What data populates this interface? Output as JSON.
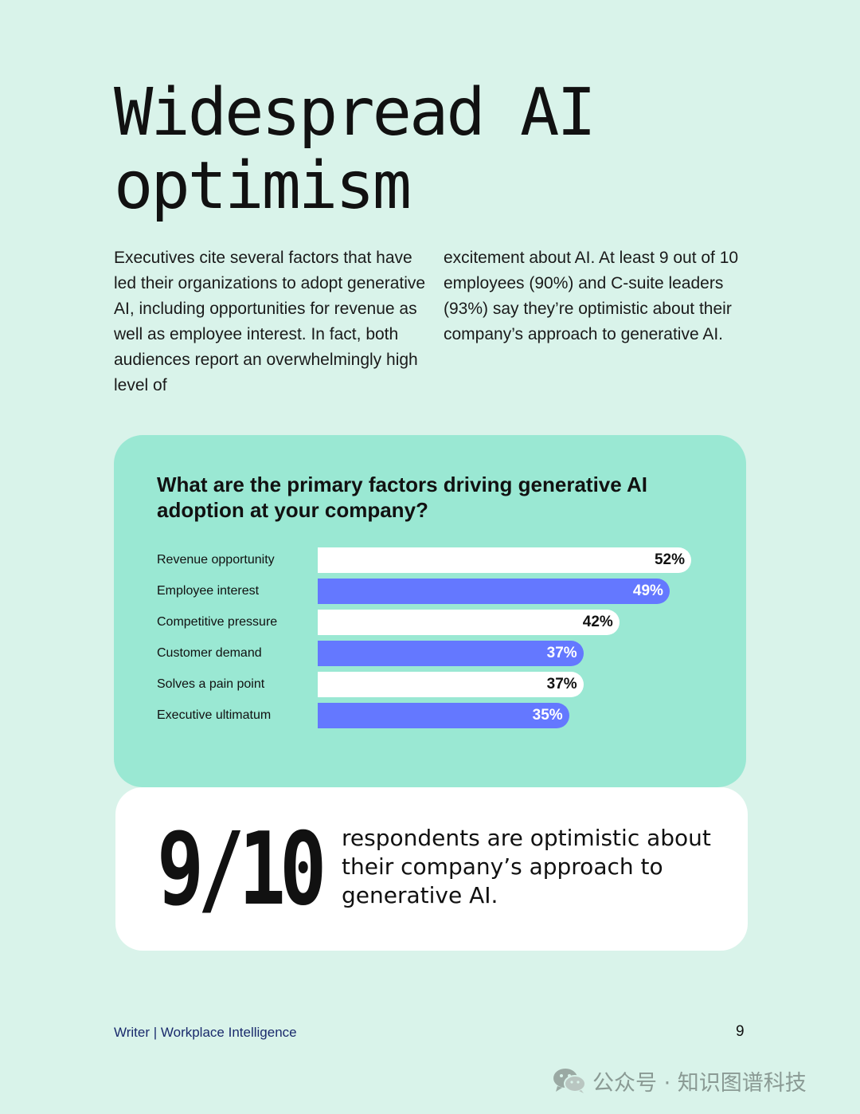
{
  "title_line1": "Widespread AI",
  "title_line2": "optimism",
  "intro_col1": "Executives cite several factors that have led their organizations to adopt generative AI, including opportunities for revenue as well as employee interest. In fact, both audiences report an overwhelmingly high level of",
  "intro_col2": "excitement about AI. At least 9 out of 10 employees (90%) and C-suite leaders (93%) say they’re optimistic about their company’s approach to generative AI.",
  "chart_data": {
    "type": "bar",
    "orientation": "horizontal",
    "title": "What are the primary factors driving generative AI adoption at your company?",
    "categories": [
      "Revenue opportunity",
      "Employee interest",
      "Competitive pressure",
      "Customer demand",
      "Solves a pain point",
      "Executive ultimatum"
    ],
    "values": [
      52,
      49,
      42,
      37,
      37,
      35
    ],
    "value_labels": [
      "52%",
      "49%",
      "42%",
      "37%",
      "37%",
      "35%"
    ],
    "xlim": [
      0,
      52
    ],
    "grid": false,
    "bar_colors": [
      "#ffffff",
      "#6478ff",
      "#ffffff",
      "#6478ff",
      "#ffffff",
      "#6478ff"
    ],
    "label_colors": [
      "#111111",
      "#ffffff",
      "#111111",
      "#ffffff",
      "#111111",
      "#ffffff"
    ]
  },
  "stat": {
    "number": "9/10",
    "text": "respondents are optimistic about their company’s approach to generative AI."
  },
  "footer": {
    "source": "Writer | Workplace Intelligence",
    "page": "9"
  },
  "watermark": {
    "icon": "wechat-icon",
    "text": "公众号 · 知识图谱科技"
  },
  "colors": {
    "background": "#d9f3ea",
    "card": "#9ae8d3",
    "accent": "#6478ff"
  }
}
